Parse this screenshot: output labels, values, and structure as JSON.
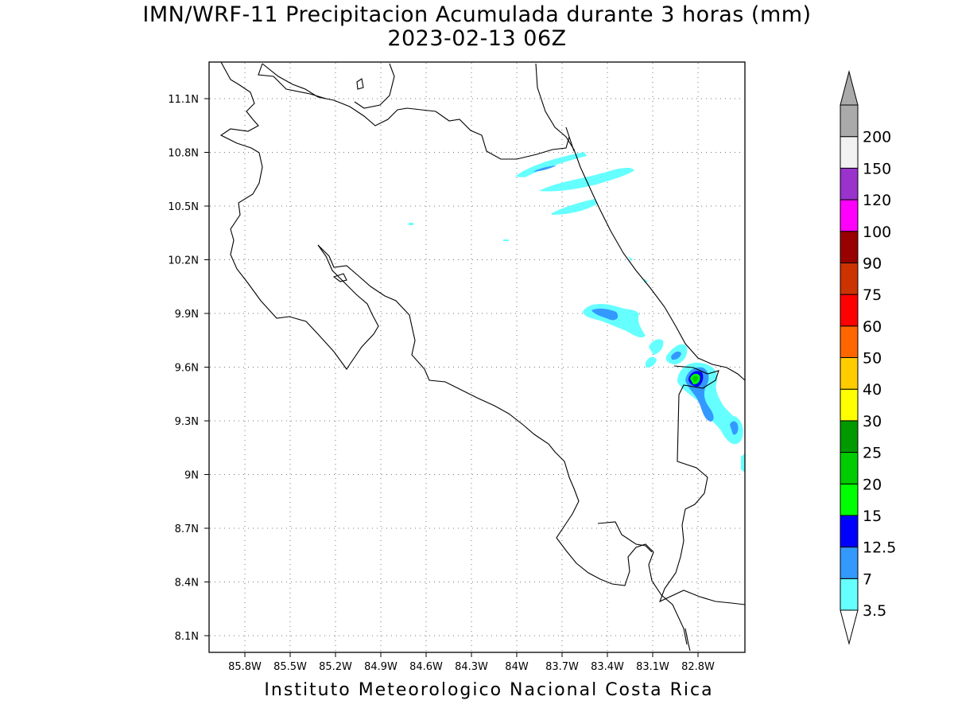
{
  "title_line1": "IMN/WRF-11 Precipitacion Acumulada durante 3 horas (mm)",
  "title_line2": "2023-02-13 06Z",
  "footer": "Instituto Meteorologico Nacional Costa Rica",
  "map": {
    "lon_range": [
      -86.0,
      -82.4
    ],
    "lat_range": [
      8.0,
      11.3
    ],
    "x_ticks": [
      "85.8W",
      "85.5W",
      "85.2W",
      "84.9W",
      "84.6W",
      "84.3W",
      "84W",
      "83.7W",
      "83.4W",
      "83.1W",
      "82.8W"
    ],
    "y_ticks": [
      "11.1N",
      "10.8N",
      "10.5N",
      "10.2N",
      "9.9N",
      "9.6N",
      "9.3N",
      "9N",
      "8.7N",
      "8.4N",
      "8.1N"
    ],
    "grid": true
  },
  "legend": {
    "levels": [
      "3.5",
      "7",
      "12.5",
      "15",
      "20",
      "25",
      "30",
      "40",
      "50",
      "60",
      "75",
      "90",
      "100",
      "120",
      "150",
      "200"
    ],
    "colors": [
      "#66ffff",
      "#3399ff",
      "#0000ff",
      "#00ff00",
      "#00cc00",
      "#009900",
      "#ffff00",
      "#ffcc00",
      "#ff6600",
      "#ff0000",
      "#cc3300",
      "#990000",
      "#ff00ff",
      "#9933cc",
      "#f2f2f2",
      "#aaaaaa"
    ]
  }
}
